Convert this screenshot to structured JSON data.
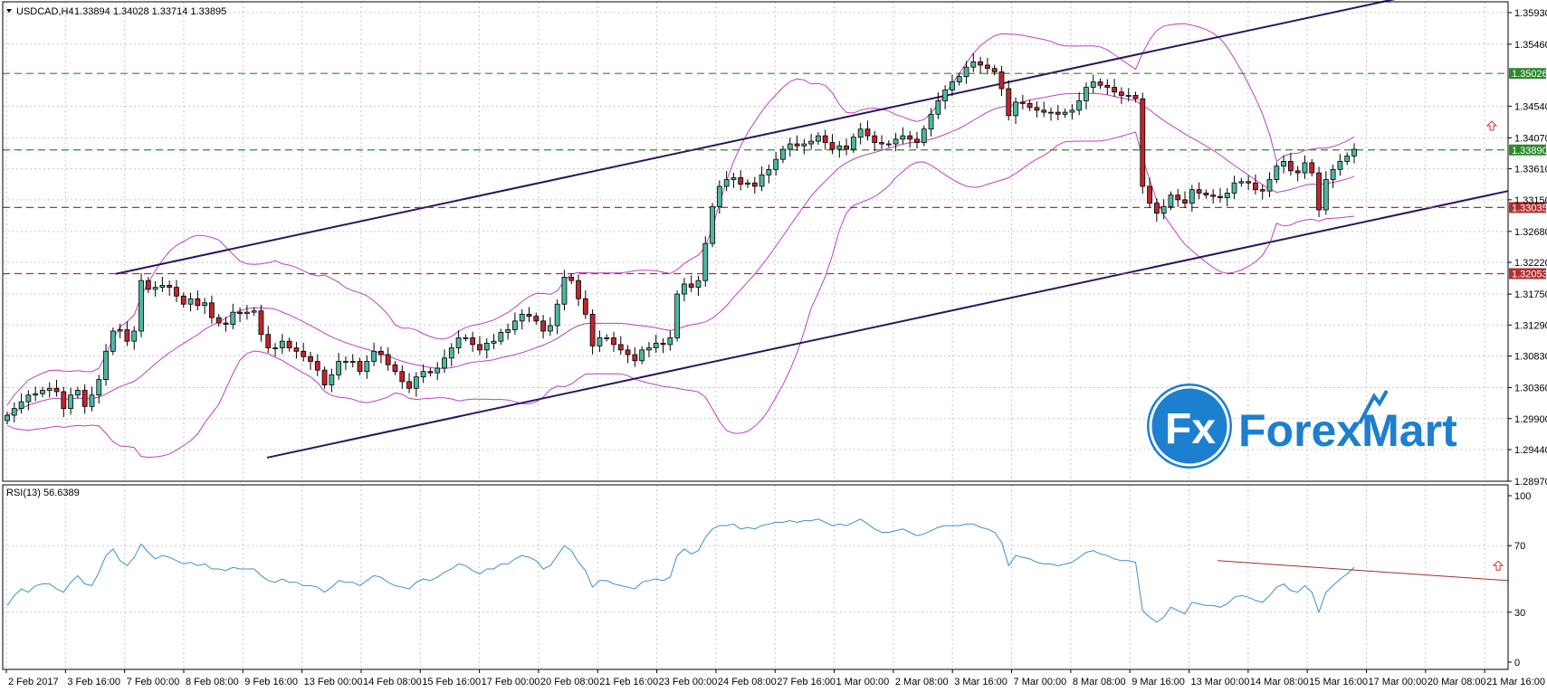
{
  "header": {
    "symbol": "USDCAD,H4",
    "ohlc": "1.33894 1.34028 1.33714 1.33895"
  },
  "rsi_header": "RSI(13) 56.6389",
  "watermark": {
    "brand": "ForexMart",
    "monogram": "Fx",
    "colors": {
      "circle": "#1c7fd0",
      "text": "#1c7fd0"
    }
  },
  "colors": {
    "bull": "#4db8a0",
    "bear": "#c0262c",
    "bands": "#c040c0",
    "channel": "#2a1660",
    "rsi": "#3f8fd0",
    "rsi_trend": "#a0302a",
    "green_line": "#2b8a2b",
    "red_line": "#b03030"
  },
  "chart_data": [
    {
      "type": "candlestick",
      "title": "USDCAD,H4",
      "x_labels": [
        "2 Feb 2017",
        "3 Feb 16:00",
        "7 Feb 00:00",
        "8 Feb 08:00",
        "9 Feb 16:00",
        "13 Feb 00:00",
        "14 Feb 08:00",
        "15 Feb 16:00",
        "17 Feb 00:00",
        "20 Feb 08:00",
        "21 Feb 16:00",
        "23 Feb 00:00",
        "24 Feb 08:00",
        "27 Feb 16:00",
        "1 Mar 00:00",
        "2 Mar 08:00",
        "3 Mar 16:00",
        "7 Mar 00:00",
        "8 Mar 08:00",
        "9 Mar 16:00",
        "13 Mar 00:00",
        "14 Mar 08:00",
        "15 Mar 16:00",
        "17 Mar 00:00",
        "20 Mar 08:00",
        "21 Mar 16:00"
      ],
      "y_ticks": [
        "1.35930",
        "1.35460",
        "1.34540",
        "1.34070",
        "1.33610",
        "1.33150",
        "1.32680",
        "1.32220",
        "1.31750",
        "1.31290",
        "1.30830",
        "1.30360",
        "1.29900",
        "1.29440",
        "1.28970"
      ],
      "ylim": [
        1.2897,
        1.3609
      ],
      "close_series": [
        1.2995,
        1.3005,
        1.3015,
        1.3025,
        1.3027,
        1.3032,
        1.3035,
        1.303,
        1.3005,
        1.3025,
        1.3032,
        1.3008,
        1.3025,
        1.3048,
        1.309,
        1.312,
        1.3122,
        1.3105,
        1.312,
        1.3195,
        1.3182,
        1.3185,
        1.3188,
        1.3185,
        1.3172,
        1.316,
        1.3168,
        1.3158,
        1.3162,
        1.314,
        1.3132,
        1.313,
        1.3148,
        1.3146,
        1.3148,
        1.315,
        1.3115,
        1.3095,
        1.3095,
        1.3105,
        1.3095,
        1.309,
        1.3082,
        1.3075,
        1.3062,
        1.304,
        1.3055,
        1.3075,
        1.3075,
        1.3075,
        1.306,
        1.3075,
        1.309,
        1.3085,
        1.307,
        1.306,
        1.3045,
        1.3035,
        1.3052,
        1.306,
        1.3058,
        1.3065,
        1.308,
        1.3095,
        1.311,
        1.311,
        1.31,
        1.3092,
        1.3102,
        1.3105,
        1.3118,
        1.3122,
        1.3135,
        1.3145,
        1.3142,
        1.3135,
        1.312,
        1.3128,
        1.316,
        1.32,
        1.3195,
        1.3168,
        1.3145,
        1.3098,
        1.311,
        1.311,
        1.31,
        1.3092,
        1.3085,
        1.3076,
        1.3092,
        1.3095,
        1.3102,
        1.31,
        1.311,
        1.3175,
        1.319,
        1.3185,
        1.3195,
        1.325,
        1.3305,
        1.3335,
        1.3345,
        1.3348,
        1.3338,
        1.334,
        1.3335,
        1.3352,
        1.336,
        1.3375,
        1.339,
        1.3398,
        1.3395,
        1.3398,
        1.3402,
        1.341,
        1.34,
        1.339,
        1.3395,
        1.339,
        1.3408,
        1.342,
        1.341,
        1.34,
        1.3398,
        1.3398,
        1.3405,
        1.341,
        1.3405,
        1.34,
        1.342,
        1.3442,
        1.3462,
        1.3478,
        1.349,
        1.3498,
        1.3512,
        1.352,
        1.3515,
        1.351,
        1.3505,
        1.348,
        1.344,
        1.346,
        1.3458,
        1.3452,
        1.3448,
        1.3445,
        1.3445,
        1.3442,
        1.3445,
        1.3448,
        1.3462,
        1.3482,
        1.349,
        1.3485,
        1.3482,
        1.3475,
        1.347,
        1.347,
        1.3465,
        1.3335,
        1.331,
        1.3295,
        1.3305,
        1.3322,
        1.3315,
        1.331,
        1.333,
        1.3325,
        1.3322,
        1.332,
        1.3318,
        1.3325,
        1.334,
        1.3342,
        1.334,
        1.333,
        1.3328,
        1.3345,
        1.3365,
        1.3372,
        1.3358,
        1.3355,
        1.337,
        1.3355,
        1.33,
        1.3345,
        1.336,
        1.3372,
        1.338,
        1.339
      ],
      "horizontal_lines": [
        {
          "price": 1.35026,
          "label": "1.35026",
          "style": "dashed",
          "color": "green"
        },
        {
          "price": 1.3389,
          "label": "1.33890",
          "style": "dashed",
          "color": "green"
        },
        {
          "price": 1.33035,
          "label": "1.33035",
          "style": "dashed",
          "color": "red"
        },
        {
          "price": 1.32053,
          "label": "1.32053",
          "style": "dashed",
          "color": "red"
        }
      ],
      "overlays": [
        "Bollinger Bands",
        "Ascending channel"
      ],
      "grid": true
    },
    {
      "type": "line",
      "title": "RSI(13) 56.6389",
      "y_ticks": [
        "100",
        "70",
        "30",
        "0"
      ],
      "ylim": [
        0,
        100
      ],
      "last_value": 56.6389,
      "series": [
        {
          "values": [
            34,
            40,
            44,
            42,
            46,
            47,
            47,
            44,
            42,
            48,
            52,
            47,
            46,
            54,
            64,
            68,
            61,
            58,
            63,
            71,
            66,
            62,
            64,
            63,
            61,
            59,
            60,
            58,
            59,
            56,
            56,
            55,
            57,
            56,
            56,
            56,
            52,
            49,
            48,
            50,
            48,
            48,
            46,
            46,
            45,
            42,
            45,
            49,
            48,
            48,
            46,
            49,
            52,
            51,
            48,
            46,
            45,
            44,
            48,
            50,
            49,
            51,
            54,
            56,
            59,
            58,
            55,
            53,
            56,
            56,
            59,
            59,
            62,
            64,
            63,
            61,
            56,
            58,
            64,
            70,
            67,
            60,
            55,
            45,
            49,
            49,
            47,
            46,
            45,
            44,
            48,
            49,
            50,
            49,
            51,
            64,
            68,
            65,
            67,
            75,
            80,
            82,
            82,
            83,
            80,
            81,
            80,
            82,
            83,
            84,
            84,
            85,
            84,
            85,
            85,
            86,
            84,
            82,
            83,
            82,
            84,
            86,
            83,
            80,
            78,
            78,
            79,
            80,
            78,
            76,
            77,
            79,
            81,
            82,
            82,
            82,
            83,
            83,
            81,
            80,
            78,
            72,
            58,
            64,
            63,
            62,
            60,
            59,
            59,
            58,
            59,
            60,
            63,
            66,
            67,
            65,
            64,
            62,
            61,
            61,
            60,
            31,
            27,
            24,
            27,
            33,
            31,
            29,
            36,
            35,
            34,
            34,
            33,
            35,
            39,
            40,
            39,
            37,
            36,
            40,
            45,
            47,
            43,
            42,
            46,
            42,
            30,
            42,
            46,
            50,
            53,
            57
          ]
        }
      ],
      "trendline": "descending",
      "grid": true
    }
  ]
}
